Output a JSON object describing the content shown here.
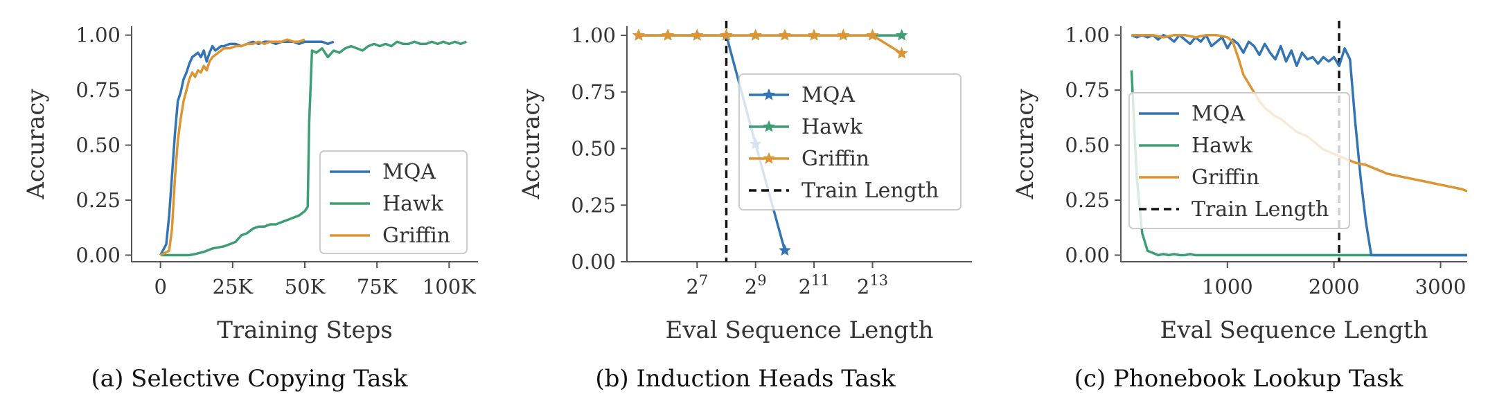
{
  "colors": {
    "MQA": "#3274b4",
    "Hawk": "#3d9e74",
    "Griffin": "#dd9433",
    "train": "#111111",
    "axis": "#555555"
  },
  "chart_data": [
    {
      "type": "line",
      "caption": "(a)  Selective Copying Task",
      "xlabel": "Training Steps",
      "ylabel": "Accuracy",
      "xlim": [
        -10000,
        110000
      ],
      "ylim": [
        -0.03,
        1.04
      ],
      "xticks": [
        0,
        25000,
        50000,
        75000,
        100000
      ],
      "xtick_labels": [
        "0",
        "25K",
        "50K",
        "75K",
        "100K"
      ],
      "yticks": [
        0,
        0.25,
        0.5,
        0.75,
        1.0
      ],
      "ytick_labels": [
        "0.00",
        "0.25",
        "0.50",
        "0.75",
        "1.00"
      ],
      "legend": [
        "MQA",
        "Hawk",
        "Griffin"
      ],
      "legend_position": "bottom-right",
      "series": [
        {
          "name": "MQA",
          "marker": "none",
          "x": [
            0,
            2000,
            3000,
            5000,
            6000,
            7000,
            8000,
            9000,
            10000,
            11000,
            12000,
            13000,
            14000,
            15000,
            16000,
            17000,
            18000,
            19000,
            20000,
            21000,
            22000,
            24000,
            26000,
            28000,
            30000,
            32000,
            34000,
            36000,
            38000,
            40000,
            42000,
            44000,
            46000,
            48000,
            50000,
            52000,
            54000,
            56000,
            58000,
            60000
          ],
          "y": [
            0,
            0.05,
            0.18,
            0.55,
            0.7,
            0.74,
            0.8,
            0.83,
            0.87,
            0.9,
            0.91,
            0.92,
            0.9,
            0.93,
            0.88,
            0.92,
            0.95,
            0.93,
            0.94,
            0.95,
            0.95,
            0.96,
            0.96,
            0.95,
            0.96,
            0.97,
            0.96,
            0.97,
            0.97,
            0.96,
            0.97,
            0.97,
            0.97,
            0.96,
            0.97,
            0.97,
            0.97,
            0.97,
            0.96,
            0.97
          ]
        },
        {
          "name": "Hawk",
          "marker": "none",
          "x": [
            0,
            10000,
            12000,
            15000,
            18000,
            20000,
            22000,
            24000,
            26000,
            28000,
            30000,
            32000,
            34000,
            36000,
            38000,
            40000,
            42000,
            44000,
            46000,
            48000,
            50000,
            51000,
            51500,
            52500,
            54000,
            56000,
            58000,
            60000,
            62000,
            64000,
            66000,
            68000,
            70000,
            72000,
            74000,
            76000,
            78000,
            80000,
            82000,
            84000,
            86000,
            88000,
            90000,
            92000,
            94000,
            96000,
            98000,
            100000,
            102000,
            104000,
            106000
          ],
          "y": [
            0,
            0,
            0.005,
            0.015,
            0.03,
            0.035,
            0.04,
            0.05,
            0.06,
            0.09,
            0.1,
            0.12,
            0.13,
            0.13,
            0.14,
            0.14,
            0.15,
            0.16,
            0.17,
            0.18,
            0.2,
            0.22,
            0.6,
            0.93,
            0.92,
            0.94,
            0.9,
            0.93,
            0.92,
            0.94,
            0.95,
            0.94,
            0.93,
            0.95,
            0.96,
            0.95,
            0.96,
            0.95,
            0.97,
            0.96,
            0.96,
            0.97,
            0.96,
            0.96,
            0.97,
            0.96,
            0.97,
            0.96,
            0.97,
            0.96,
            0.97
          ]
        },
        {
          "name": "Griffin",
          "marker": "none",
          "x": [
            0,
            3000,
            4000,
            5000,
            6000,
            7000,
            8000,
            9000,
            10000,
            11000,
            12000,
            13000,
            14000,
            15000,
            16000,
            17000,
            18000,
            20000,
            22000,
            24000,
            26000,
            28000,
            30000,
            32000,
            34000,
            36000,
            38000,
            40000,
            42000,
            44000,
            46000,
            48000,
            50000
          ],
          "y": [
            0,
            0.02,
            0.12,
            0.35,
            0.52,
            0.62,
            0.7,
            0.75,
            0.8,
            0.83,
            0.81,
            0.84,
            0.83,
            0.86,
            0.84,
            0.88,
            0.9,
            0.92,
            0.94,
            0.94,
            0.95,
            0.95,
            0.96,
            0.96,
            0.97,
            0.96,
            0.97,
            0.97,
            0.97,
            0.98,
            0.97,
            0.97,
            0.98
          ]
        }
      ]
    },
    {
      "type": "line",
      "caption": "(b)  Induction Heads Task",
      "xlabel": "Eval Sequence Length",
      "ylabel": "Accuracy",
      "xscale": "log2",
      "xlim": [
        4.6,
        16.4
      ],
      "ylim": [
        -0.0,
        1.04
      ],
      "xticks": [
        7,
        9,
        11,
        13
      ],
      "xtick_labels": [
        "2^7",
        "2^9",
        "2^11",
        "2^13"
      ],
      "yticks": [
        0,
        0.25,
        0.5,
        0.75,
        1.0
      ],
      "ytick_labels": [
        "0.00",
        "0.25",
        "0.50",
        "0.75",
        "1.00"
      ],
      "train_length_log2": 8,
      "legend": [
        "MQA",
        "Hawk",
        "Griffin",
        "Train Length"
      ],
      "legend_position": "center-right",
      "series": [
        {
          "name": "MQA",
          "marker": "star",
          "x": [
            5,
            6,
            7,
            8,
            9,
            10
          ],
          "y": [
            1.0,
            1.0,
            1.0,
            1.0,
            0.52,
            0.05
          ]
        },
        {
          "name": "Hawk",
          "marker": "star",
          "x": [
            5,
            6,
            7,
            8,
            9,
            10,
            11,
            12,
            13,
            14
          ],
          "y": [
            1.0,
            1.0,
            1.0,
            1.0,
            1.0,
            1.0,
            1.0,
            1.0,
            1.0,
            1.0
          ]
        },
        {
          "name": "Griffin",
          "marker": "star",
          "x": [
            5,
            6,
            7,
            8,
            9,
            10,
            11,
            12,
            13,
            14
          ],
          "y": [
            1.0,
            1.0,
            1.0,
            1.0,
            1.0,
            1.0,
            1.0,
            1.0,
            1.0,
            0.92
          ]
        }
      ]
    },
    {
      "type": "line",
      "caption": "(c)  Phonebook Lookup Task",
      "xlabel": "Eval Sequence Length",
      "ylabel": "Accuracy",
      "xlim": [
        0,
        3250
      ],
      "ylim": [
        -0.03,
        1.04
      ],
      "xticks": [
        1000,
        2000,
        3000
      ],
      "xtick_labels": [
        "1000",
        "2000",
        "3000"
      ],
      "yticks": [
        0,
        0.25,
        0.5,
        0.75,
        1.0
      ],
      "ytick_labels": [
        "0.00",
        "0.25",
        "0.50",
        "0.75",
        "1.00"
      ],
      "train_length": 2048,
      "legend": [
        "MQA",
        "Hawk",
        "Griffin",
        "Train Length"
      ],
      "legend_position": "center-left",
      "series": [
        {
          "name": "MQA",
          "marker": "none",
          "x": [
            100,
            150,
            200,
            250,
            300,
            350,
            400,
            450,
            500,
            550,
            600,
            650,
            700,
            750,
            800,
            850,
            900,
            950,
            1000,
            1050,
            1100,
            1150,
            1200,
            1250,
            1300,
            1350,
            1400,
            1450,
            1500,
            1550,
            1600,
            1650,
            1700,
            1750,
            1800,
            1850,
            1900,
            1950,
            2000,
            2048,
            2100,
            2150,
            2200,
            2250,
            2300,
            2350,
            2400,
            2500,
            2700,
            3000,
            3250
          ],
          "y": [
            1.0,
            0.99,
            1.0,
            0.99,
            1.0,
            0.98,
            1.0,
            0.99,
            0.97,
            1.0,
            0.98,
            0.96,
            0.99,
            0.97,
            1.0,
            0.95,
            0.97,
            0.99,
            0.94,
            0.98,
            0.96,
            0.92,
            0.97,
            0.95,
            0.91,
            0.96,
            0.92,
            0.89,
            0.95,
            0.88,
            0.93,
            0.86,
            0.92,
            0.89,
            0.9,
            0.87,
            0.9,
            0.88,
            0.9,
            0.86,
            0.94,
            0.89,
            0.6,
            0.35,
            0.15,
            0.0,
            0.0,
            0.0,
            0.0,
            0.0,
            0.0
          ]
        },
        {
          "name": "Hawk",
          "marker": "none",
          "x": [
            100,
            150,
            200,
            250,
            300,
            350,
            400,
            450,
            500,
            550,
            600,
            650,
            700,
            800,
            1000,
            1500,
            2000,
            2500,
            3000,
            3250
          ],
          "y": [
            0.84,
            0.35,
            0.1,
            0.02,
            0.01,
            0.0,
            0.005,
            0.0,
            0.005,
            0.0,
            0.0,
            0.005,
            0.0,
            0.0,
            0.0,
            0.0,
            0.0,
            0.0,
            0.0,
            0.0
          ]
        },
        {
          "name": "Griffin",
          "marker": "none",
          "x": [
            100,
            200,
            300,
            400,
            500,
            600,
            700,
            800,
            900,
            1000,
            1050,
            1100,
            1150,
            1200,
            1250,
            1300,
            1350,
            1400,
            1450,
            1500,
            1550,
            1600,
            1650,
            1700,
            1750,
            1800,
            1850,
            1900,
            1950,
            2000,
            2050,
            2100,
            2200,
            2300,
            2400,
            2500,
            2600,
            2700,
            2800,
            2900,
            3000,
            3100,
            3200,
            3250
          ],
          "y": [
            1.0,
            1.0,
            1.0,
            0.99,
            1.0,
            1.0,
            0.99,
            1.0,
            1.0,
            0.99,
            0.97,
            0.9,
            0.82,
            0.78,
            0.74,
            0.7,
            0.67,
            0.65,
            0.63,
            0.62,
            0.6,
            0.58,
            0.56,
            0.55,
            0.54,
            0.52,
            0.5,
            0.48,
            0.47,
            0.46,
            0.45,
            0.44,
            0.42,
            0.41,
            0.39,
            0.37,
            0.36,
            0.35,
            0.34,
            0.33,
            0.32,
            0.31,
            0.3,
            0.29
          ]
        }
      ]
    }
  ]
}
